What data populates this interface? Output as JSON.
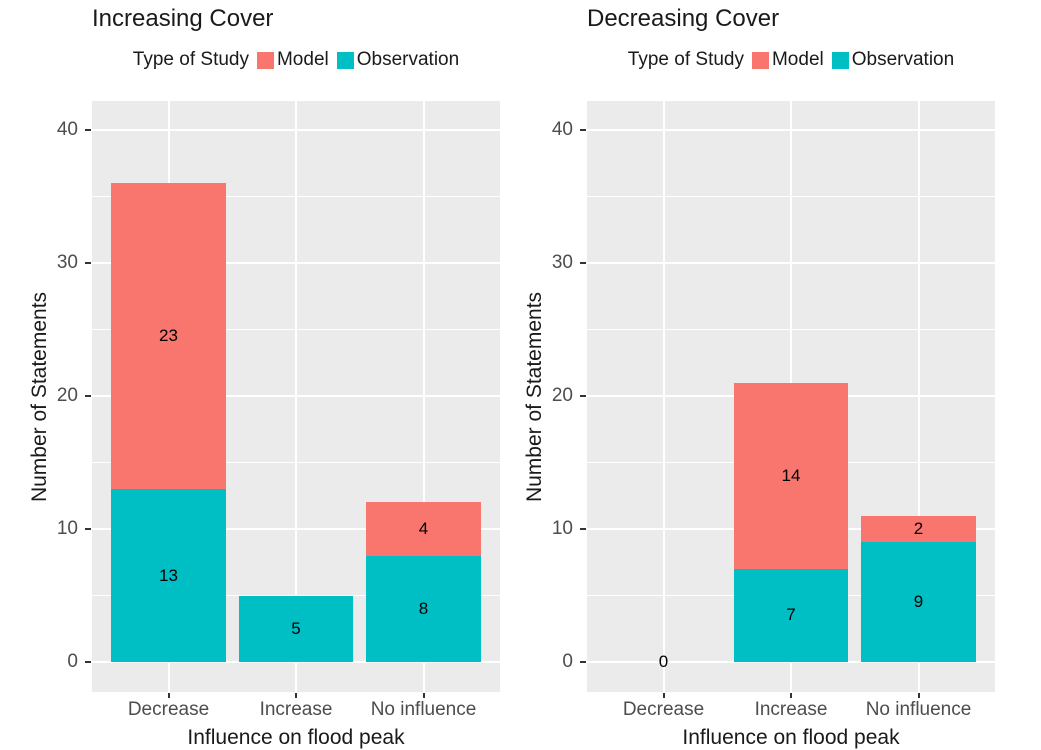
{
  "figure": {
    "background": "#FFFFFF",
    "panel_bg": "#EBEBEB",
    "grid_color": "#FFFFFF",
    "axis_text_color": "#4D4D4D",
    "title_color": "#1A1A1A",
    "legend": {
      "title": "Type of Study",
      "items": [
        {
          "label": "Model",
          "color": "#F8766D"
        },
        {
          "label": "Observation",
          "color": "#00BFC4"
        }
      ]
    }
  },
  "chart_data": [
    {
      "type": "bar",
      "stacked": true,
      "title": "Increasing Cover",
      "xlabel": "Influence on flood peak",
      "ylabel": "Number of Statements",
      "categories": [
        "Decrease",
        "Increase",
        "No influence"
      ],
      "series": [
        {
          "name": "Observation",
          "color": "#00BFC4",
          "values": [
            13,
            5,
            8
          ]
        },
        {
          "name": "Model",
          "color": "#F8766D",
          "values": [
            23,
            0,
            4
          ]
        }
      ],
      "totals": [
        36,
        5,
        12
      ],
      "bar_labels": {
        "Decrease": [
          13,
          23
        ],
        "Increase": [
          5
        ],
        "No influence": [
          8,
          4
        ]
      },
      "y_ticks": [
        0,
        10,
        20,
        30,
        40
      ],
      "ylim": [
        0,
        42
      ],
      "grid": true,
      "legend_position": "top"
    },
    {
      "type": "bar",
      "stacked": true,
      "title": "Decreasing Cover",
      "xlabel": "Influence on flood peak",
      "ylabel": "Number of Statements",
      "categories": [
        "Decrease",
        "Increase",
        "No influence"
      ],
      "series": [
        {
          "name": "Observation",
          "color": "#00BFC4",
          "values": [
            0,
            7,
            9
          ]
        },
        {
          "name": "Model",
          "color": "#F8766D",
          "values": [
            0,
            14,
            2
          ]
        }
      ],
      "totals": [
        0,
        21,
        11
      ],
      "bar_labels": {
        "Decrease": [
          0
        ],
        "Increase": [
          7,
          14
        ],
        "No influence": [
          9,
          2
        ]
      },
      "y_ticks": [
        0,
        10,
        20,
        30,
        40
      ],
      "ylim": [
        0,
        42
      ],
      "grid": true,
      "legend_position": "top"
    }
  ]
}
